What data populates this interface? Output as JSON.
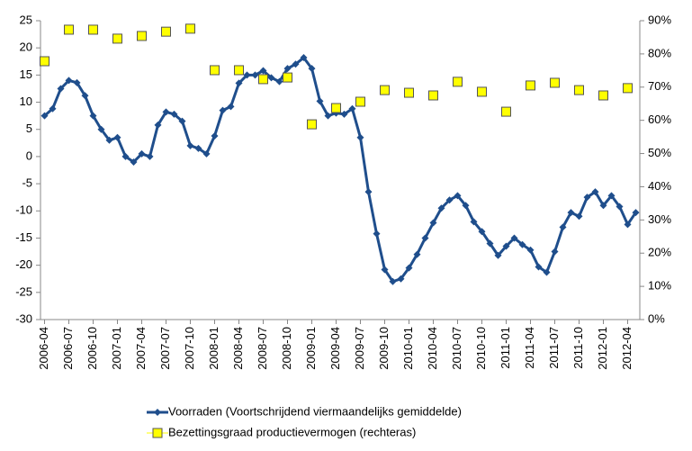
{
  "chart_data": {
    "type": "line",
    "categories": [
      "2006-04",
      null,
      null,
      "2006-07",
      null,
      null,
      "2006-10",
      null,
      null,
      "2007-01",
      null,
      null,
      "2007-04",
      null,
      null,
      "2007-07",
      null,
      null,
      "2007-10",
      null,
      null,
      "2008-01",
      null,
      null,
      "2008-04",
      null,
      null,
      "2008-07",
      null,
      null,
      "2008-10",
      null,
      null,
      "2009-01",
      null,
      null,
      "2009-04",
      null,
      null,
      "2009-07",
      null,
      null,
      "2009-10",
      null,
      null,
      "2010-01",
      null,
      null,
      "2010-04",
      null,
      null,
      "2010-07",
      null,
      null,
      "2010-10",
      null,
      null,
      "2011-01",
      null,
      null,
      "2011-04",
      null,
      null,
      "2011-07",
      null,
      null,
      "2011-10",
      null,
      null,
      "2012-01",
      null,
      null,
      "2012-04",
      null
    ],
    "series": [
      {
        "name": "Voorraden (Voortschrijdend viermaandelijks gemiddelde)",
        "color": "#1f4e8c",
        "marker": "diamond",
        "line": true,
        "values": [
          7.5,
          8.8,
          12.5,
          14,
          13.6,
          11.2,
          7.5,
          5,
          3,
          3.5,
          0,
          -1,
          0.5,
          0,
          5.8,
          8.2,
          7.8,
          6.5,
          2,
          1.5,
          0.5,
          3.8,
          8.5,
          9.2,
          13.5,
          15,
          15,
          15.8,
          14.5,
          13.8,
          16.2,
          17,
          18.2,
          16.2,
          10.2,
          7.5,
          8,
          7.8,
          8.8,
          3.5,
          -6.5,
          -14.2,
          -20.8,
          -23,
          -22.5,
          -20.5,
          -18,
          -15,
          -12.2,
          -9.5,
          -8,
          -7.2,
          -9,
          -12,
          -13.8,
          -16,
          -18.2,
          -16.5,
          -15,
          -16.2,
          -17.2,
          -20.3,
          -21.3,
          -17.5,
          -13,
          -10.3,
          -11,
          -7.5,
          -6.5,
          -9,
          -7.2,
          -9.2,
          -12.5,
          -10.3
        ]
      },
      {
        "name": "Bezettingsgraad productievermogen (rechteras)",
        "color": "#ffff00",
        "marker": "square",
        "line": false,
        "axis": "y2",
        "values": [
          77.8,
          null,
          null,
          87.3,
          null,
          null,
          87.3,
          null,
          null,
          84.6,
          null,
          null,
          85.4,
          null,
          null,
          86.7,
          null,
          null,
          87.6,
          null,
          null,
          75.1,
          null,
          null,
          75.1,
          null,
          null,
          72.4,
          null,
          null,
          72.9,
          null,
          null,
          58.8,
          null,
          null,
          63.7,
          null,
          null,
          65.6,
          null,
          null,
          69.1,
          null,
          null,
          68.3,
          null,
          null,
          67.5,
          null,
          null,
          71.6,
          null,
          null,
          68.6,
          null,
          null,
          62.6,
          null,
          null,
          70.5,
          null,
          null,
          71.3,
          null,
          null,
          69.1,
          null,
          null,
          67.5,
          null,
          null,
          69.7,
          null
        ]
      }
    ],
    "ylim": [
      -30,
      25
    ],
    "yticks": [
      -30,
      -25,
      -20,
      -15,
      -10,
      -5,
      0,
      5,
      10,
      15,
      20,
      25
    ],
    "y2lim": [
      0,
      90
    ],
    "y2ticks": [
      {
        "value": 0,
        "label": "0%"
      },
      {
        "value": 10,
        "label": "10%"
      },
      {
        "value": 20,
        "label": "20%"
      },
      {
        "value": 30,
        "label": "30%"
      },
      {
        "value": 40,
        "label": "40%"
      },
      {
        "value": 50,
        "label": "50%"
      },
      {
        "value": 60,
        "label": "60%"
      },
      {
        "value": 70,
        "label": "70%"
      },
      {
        "value": 80,
        "label": "80%"
      },
      {
        "value": 90,
        "label": "90%"
      }
    ],
    "grid": false,
    "legend": "bottom"
  }
}
